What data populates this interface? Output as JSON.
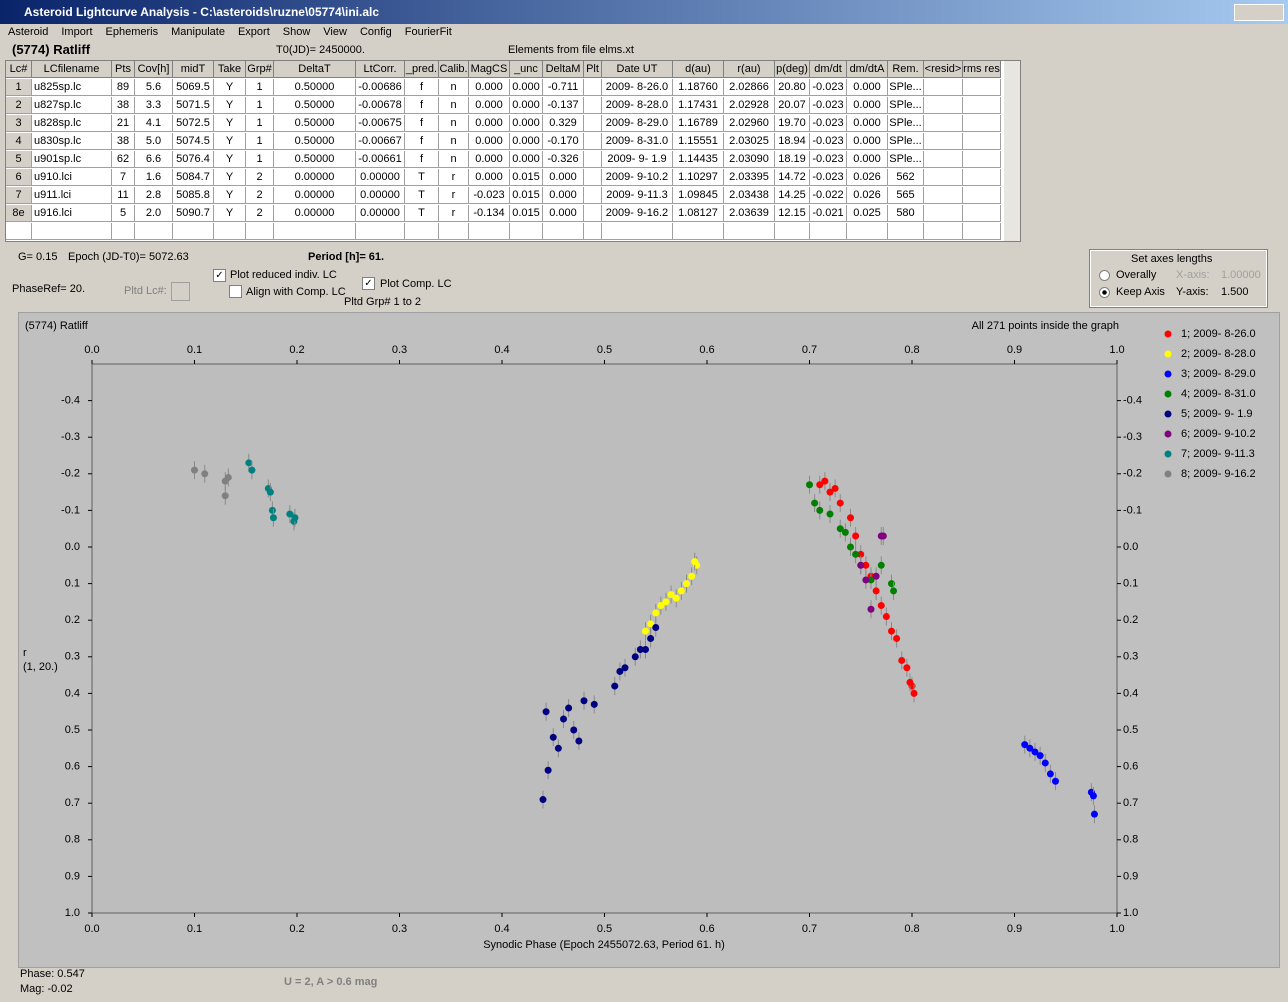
{
  "window": {
    "title": "Asteroid Lightcurve Analysis - C:\\asteroids\\ruzne\\05774\\ini.alc"
  },
  "menu": [
    "Asteroid",
    "Import",
    "Ephemeris",
    "Manipulate",
    "Export",
    "Show",
    "View",
    "Config",
    "FourierFit"
  ],
  "info": {
    "object": "(5774) Ratliff",
    "t0": "T0(JD)= 2450000.",
    "elements": "Elements from file elms.xt"
  },
  "table": {
    "columns": [
      "Lc#",
      "LCfilename",
      "Pts",
      "Cov[h]",
      "midT",
      "Take",
      "Grp#",
      "DeltaT",
      "LtCorr.",
      "_pred.",
      "Calib.",
      "MagCS",
      "_unc",
      "DeltaM",
      "Plt",
      "Date UT",
      "d(au)",
      "r(au)",
      "p(deg)",
      "dm/dt",
      "dm/dtA",
      "Rem.",
      "<resid>",
      "rms res"
    ],
    "rows": [
      [
        "1",
        "u825sp.lc",
        "89",
        "5.6",
        "5069.5",
        "Y",
        "1",
        "0.50000",
        "-0.00686",
        "f",
        "n",
        "0.000",
        "0.000",
        "-0.711",
        "",
        "2009- 8-26.0",
        "1.18760",
        "2.02866",
        "20.80",
        "-0.023",
        "0.000",
        "SPle..."
      ],
      [
        "2",
        "u827sp.lc",
        "38",
        "3.3",
        "5071.5",
        "Y",
        "1",
        "0.50000",
        "-0.00678",
        "f",
        "n",
        "0.000",
        "0.000",
        "-0.137",
        "",
        "2009- 8-28.0",
        "1.17431",
        "2.02928",
        "20.07",
        "-0.023",
        "0.000",
        "SPle..."
      ],
      [
        "3",
        "u828sp.lc",
        "21",
        "4.1",
        "5072.5",
        "Y",
        "1",
        "0.50000",
        "-0.00675",
        "f",
        "n",
        "0.000",
        "0.000",
        "0.329",
        "",
        "2009- 8-29.0",
        "1.16789",
        "2.02960",
        "19.70",
        "-0.023",
        "0.000",
        "SPle..."
      ],
      [
        "4",
        "u830sp.lc",
        "38",
        "5.0",
        "5074.5",
        "Y",
        "1",
        "0.50000",
        "-0.00667",
        "f",
        "n",
        "0.000",
        "0.000",
        "-0.170",
        "",
        "2009- 8-31.0",
        "1.15551",
        "2.03025",
        "18.94",
        "-0.023",
        "0.000",
        "SPle..."
      ],
      [
        "5",
        "u901sp.lc",
        "62",
        "6.6",
        "5076.4",
        "Y",
        "1",
        "0.50000",
        "-0.00661",
        "f",
        "n",
        "0.000",
        "0.000",
        "-0.326",
        "",
        "2009- 9- 1.9",
        "1.14435",
        "2.03090",
        "18.19",
        "-0.023",
        "0.000",
        "SPle..."
      ],
      [
        "6",
        "u910.lci",
        "7",
        "1.6",
        "5084.7",
        "Y",
        "2",
        "0.00000",
        "0.00000",
        "T",
        "r",
        "0.000",
        "0.015",
        "0.000",
        "",
        "2009- 9-10.2",
        "1.10297",
        "2.03395",
        "14.72",
        "-0.023",
        "0.026",
        "562"
      ],
      [
        "7",
        "u911.lci",
        "11",
        "2.8",
        "5085.8",
        "Y",
        "2",
        "0.00000",
        "0.00000",
        "T",
        "r",
        "-0.023",
        "0.015",
        "0.000",
        "",
        "2009- 9-11.3",
        "1.09845",
        "2.03438",
        "14.25",
        "-0.022",
        "0.026",
        "565"
      ],
      [
        "8e",
        "u916.lci",
        "5",
        "2.0",
        "5090.7",
        "Y",
        "2",
        "0.00000",
        "0.00000",
        "T",
        "r",
        "-0.134",
        "0.015",
        "0.000",
        "",
        "2009- 9-16.2",
        "1.08127",
        "2.03639",
        "12.15",
        "-0.021",
        "0.025",
        "580"
      ]
    ]
  },
  "controls": {
    "g": "G= 0.15",
    "epoch": "Epoch (JD-T0)= 5072.63",
    "period": "Period [h]= 61.",
    "phaseref": "PhaseRef= 20.",
    "pltd_lc": "Pltd Lc#:",
    "plot_reduced": "Plot reduced indiv. LC",
    "align": "Align with Comp. LC",
    "plot_comp": "Plot Comp. LC",
    "pltd_grp": "Pltd Grp#  1   to   2",
    "axes": {
      "title": "Set axes lengths",
      "overally": "Overally",
      "keep": "Keep Axis",
      "xaxis": "X-axis:",
      "xval": "1.00000",
      "yaxis": "Y-axis:",
      "yval": "1.500"
    }
  },
  "chart_data": {
    "type": "scatter",
    "title": "(5774) Ratliff",
    "annotation": "All 271 points inside the graph",
    "xlabel": "Synodic Phase (Epoch 2455072.63, Period 61. h)",
    "ylabel": "r",
    "ylabel2": "(1, 20.)",
    "xlim": [
      0,
      1.0
    ],
    "ylim": [
      -0.5,
      1.0
    ],
    "y_inverted": true,
    "xticks": [
      {
        "value": 0,
        "label": "0.0"
      },
      0.1,
      0.2,
      0.3,
      0.4,
      0.5,
      0.6,
      0.7,
      0.8,
      0.9,
      {
        "value": 1,
        "label": "1.0"
      }
    ],
    "yticks": [
      -0.4,
      -0.3,
      -0.2,
      -0.1,
      {
        "value": 0,
        "label": "0.0"
      },
      0.1,
      0.2,
      0.3,
      0.4,
      0.5,
      0.6,
      0.7,
      0.8,
      0.9,
      {
        "value": 1,
        "label": "1.0"
      }
    ],
    "series": [
      {
        "name": "1; 2009- 8-26.0",
        "color": "#ff0000",
        "x": [
          0.71,
          0.715,
          0.72,
          0.725,
          0.73,
          0.74,
          0.745,
          0.75,
          0.755,
          0.76,
          0.765,
          0.77,
          0.775,
          0.78,
          0.785,
          0.79,
          0.795,
          0.8,
          0.802,
          0.798
        ],
        "values": [
          -0.17,
          -0.18,
          -0.15,
          -0.16,
          -0.12,
          -0.08,
          -0.03,
          0.02,
          0.05,
          0.08,
          0.12,
          0.16,
          0.19,
          0.23,
          0.25,
          0.31,
          0.33,
          0.38,
          0.4,
          0.37
        ]
      },
      {
        "name": "2; 2009- 8-28.0",
        "color": "#ffff00",
        "x": [
          0.54,
          0.545,
          0.55,
          0.555,
          0.56,
          0.565,
          0.57,
          0.575,
          0.58,
          0.585,
          0.59,
          0.588
        ],
        "values": [
          0.23,
          0.21,
          0.18,
          0.16,
          0.15,
          0.13,
          0.14,
          0.12,
          0.1,
          0.08,
          0.05,
          0.04
        ]
      },
      {
        "name": "3; 2009- 8-29.0",
        "color": "#0000ff",
        "x": [
          0.91,
          0.915,
          0.92,
          0.925,
          0.93,
          0.935,
          0.94,
          0.975,
          0.977,
          0.978
        ],
        "values": [
          0.54,
          0.55,
          0.56,
          0.57,
          0.59,
          0.62,
          0.64,
          0.67,
          0.68,
          0.73
        ]
      },
      {
        "name": "4; 2009- 8-31.0",
        "color": "#008000",
        "x": [
          0.7,
          0.705,
          0.71,
          0.72,
          0.73,
          0.735,
          0.74,
          0.745,
          0.75,
          0.76,
          0.77,
          0.78,
          0.782
        ],
        "values": [
          -0.17,
          -0.12,
          -0.1,
          -0.09,
          -0.05,
          -0.04,
          0.0,
          0.02,
          0.05,
          0.09,
          0.05,
          0.1,
          0.12
        ]
      },
      {
        "name": "5; 2009- 9- 1.9",
        "color": "#000080",
        "x": [
          0.44,
          0.445,
          0.443,
          0.45,
          0.455,
          0.46,
          0.465,
          0.47,
          0.475,
          0.48,
          0.49,
          0.51,
          0.515,
          0.52,
          0.53,
          0.535,
          0.54,
          0.545,
          0.55
        ],
        "values": [
          0.69,
          0.61,
          0.45,
          0.52,
          0.55,
          0.47,
          0.44,
          0.5,
          0.53,
          0.42,
          0.43,
          0.38,
          0.34,
          0.33,
          0.3,
          0.28,
          0.28,
          0.25,
          0.22
        ]
      },
      {
        "name": "6; 2009- 9-10.2",
        "color": "#800080",
        "x": [
          0.75,
          0.76,
          0.765,
          0.77,
          0.772,
          0.755
        ],
        "values": [
          0.05,
          0.17,
          0.08,
          -0.03,
          -0.03,
          0.09
        ]
      },
      {
        "name": "7; 2009- 9-11.3",
        "color": "#008080",
        "x": [
          0.153,
          0.156,
          0.172,
          0.174,
          0.176,
          0.177,
          0.193,
          0.197,
          0.198
        ],
        "values": [
          -0.23,
          -0.21,
          -0.16,
          -0.15,
          -0.1,
          -0.08,
          -0.09,
          -0.07,
          -0.08
        ]
      },
      {
        "name": "8; 2009- 9-16.2",
        "color": "#808080",
        "x": [
          0.1,
          0.11,
          0.13,
          0.13,
          0.133
        ],
        "values": [
          -0.21,
          -0.2,
          -0.18,
          -0.14,
          -0.19
        ]
      }
    ]
  },
  "status": {
    "phase": "Phase:  0.547",
    "mag": "Mag:  -0.02",
    "note": "U = 2, A > 0.6 mag"
  }
}
